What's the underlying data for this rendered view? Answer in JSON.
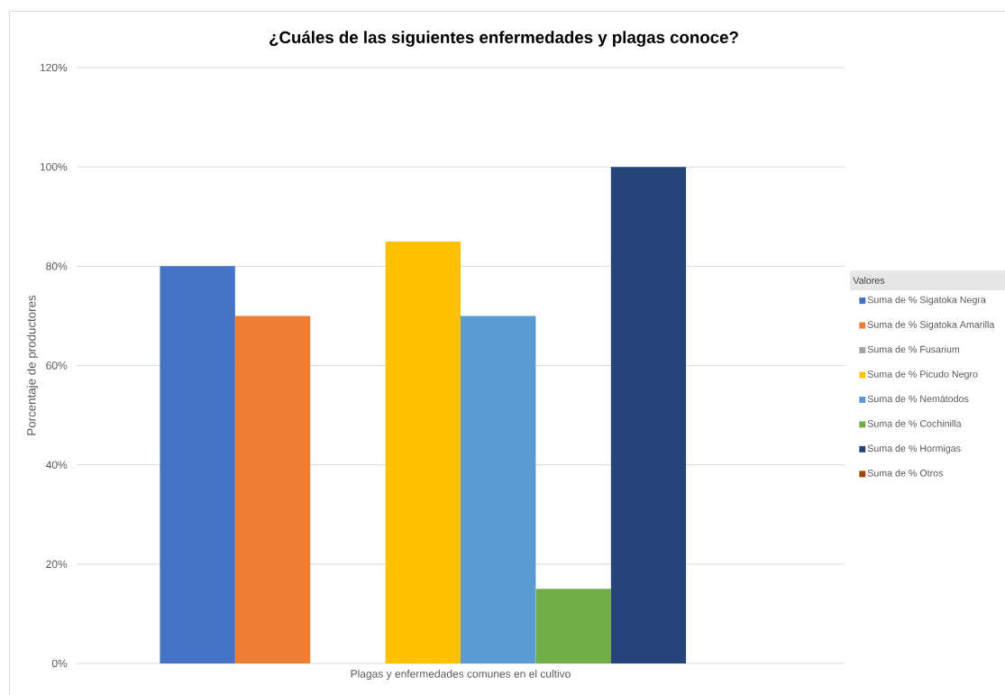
{
  "chart_data": {
    "type": "bar",
    "title": "¿Cuáles de las siguientes enfermedades y plagas conoce?",
    "ylabel": "Porcentaje de productores",
    "legend_title": "Valores",
    "categories": [
      "Plagas y enfermedades comunes en el cultivo"
    ],
    "series": [
      {
        "name": "Suma de % Sigatoka Negra",
        "color": "#4472c4",
        "values": [
          80
        ]
      },
      {
        "name": "Suma de % Sigatoka Amarilla",
        "color": "#ed7d31",
        "values": [
          70
        ]
      },
      {
        "name": "Suma de % Fusarium",
        "color": "#a5a5a5",
        "values": [
          0
        ]
      },
      {
        "name": "Suma de % Picudo Negro",
        "color": "#ffc000",
        "values": [
          85
        ]
      },
      {
        "name": "Suma de % Nemátodos",
        "color": "#5b9bd5",
        "values": [
          70
        ]
      },
      {
        "name": "Suma de % Cochinilla",
        "color": "#70ad47",
        "values": [
          15
        ]
      },
      {
        "name": "Suma de % Hormigas",
        "color": "#264478",
        "values": [
          100
        ]
      },
      {
        "name": "Suma de % Otros",
        "color": "#9e480e",
        "values": [
          0
        ]
      }
    ],
    "ylim": [
      0,
      120
    ],
    "yticks": [
      {
        "value": 0,
        "label": "0%"
      },
      {
        "value": 20,
        "label": "20%"
      },
      {
        "value": 40,
        "label": "40%"
      },
      {
        "value": 60,
        "label": "60%"
      },
      {
        "value": 80,
        "label": "80%"
      },
      {
        "value": 100,
        "label": "100%"
      },
      {
        "value": 120,
        "label": "120%"
      }
    ],
    "grid": "y",
    "legend": "right"
  }
}
